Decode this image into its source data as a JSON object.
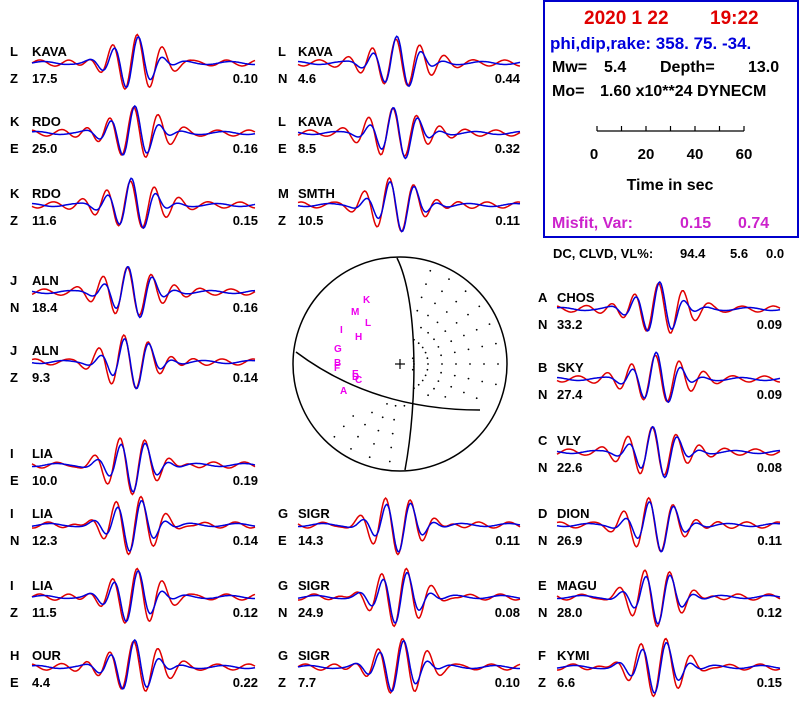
{
  "header": {
    "date": "2020  1 22",
    "time": "19:22",
    "mechanism": "phi,dip,rake: 358. 75.  -34.",
    "mw_label": "Mw=",
    "mw": "5.4",
    "depth_label": "Depth=",
    "depth": "13.0",
    "mo_label": "Mo=",
    "mo": "1.60 x10**24 DYNECM",
    "misfit_label": "Misfit, Var:",
    "misfit": "0.15",
    "var": "0.74",
    "dc_label": "DC, CLVD, VL%:",
    "dc": "94.4",
    "clvd": "5.6",
    "vl": "0.0"
  },
  "time_scale": {
    "ticks": [
      "0",
      "20",
      "40",
      "60"
    ],
    "label": "Time  in sec"
  },
  "colors": {
    "observed": "#e00000",
    "synthetic": "#0000dd",
    "frame": "#0000cc",
    "date": "#e00000",
    "mechanism": "#0000dd",
    "misfit": "#cc22cc",
    "station_marks": "#ee00ee"
  },
  "traces": [
    {
      "letter": "L",
      "station": "KAVA",
      "comp": "Z",
      "dist": "17.5",
      "amp": "0.10"
    },
    {
      "letter": "K",
      "station": "RDO",
      "comp": "E",
      "dist": "25.0",
      "amp": "0.16"
    },
    {
      "letter": "K",
      "station": "RDO",
      "comp": "Z",
      "dist": "11.6",
      "amp": "0.15"
    },
    {
      "letter": "J",
      "station": "ALN",
      "comp": "N",
      "dist": "18.4",
      "amp": "0.16"
    },
    {
      "letter": "J",
      "station": "ALN",
      "comp": "Z",
      "dist": "9.3",
      "amp": "0.14"
    },
    {
      "letter": "I",
      "station": "LIA",
      "comp": "E",
      "dist": "10.0",
      "amp": "0.19"
    },
    {
      "letter": "I",
      "station": "LIA",
      "comp": "N",
      "dist": "12.3",
      "amp": "0.14"
    },
    {
      "letter": "I",
      "station": "LIA",
      "comp": "Z",
      "dist": "11.5",
      "amp": "0.12"
    },
    {
      "letter": "H",
      "station": "OUR",
      "comp": "E",
      "dist": "4.4",
      "amp": "0.22"
    },
    {
      "letter": "L",
      "station": "KAVA",
      "comp": "N",
      "dist": "4.6",
      "amp": "0.44"
    },
    {
      "letter": "L",
      "station": "KAVA",
      "comp": "E",
      "dist": "8.5",
      "amp": "0.32"
    },
    {
      "letter": "M",
      "station": "SMTH",
      "comp": "Z",
      "dist": "10.5",
      "amp": "0.11"
    },
    {
      "letter": "G",
      "station": "SIGR",
      "comp": "E",
      "dist": "14.3",
      "amp": "0.11"
    },
    {
      "letter": "G",
      "station": "SIGR",
      "comp": "N",
      "dist": "24.9",
      "amp": "0.08"
    },
    {
      "letter": "G",
      "station": "SIGR",
      "comp": "Z",
      "dist": "7.7",
      "amp": "0.10"
    },
    {
      "letter": "A",
      "station": "CHOS",
      "comp": "N",
      "dist": "33.2",
      "amp": "0.09"
    },
    {
      "letter": "B",
      "station": "SKY",
      "comp": "N",
      "dist": "27.4",
      "amp": "0.09"
    },
    {
      "letter": "C",
      "station": "VLY",
      "comp": "N",
      "dist": "22.6",
      "amp": "0.08"
    },
    {
      "letter": "D",
      "station": "DION",
      "comp": "N",
      "dist": "26.9",
      "amp": "0.11"
    },
    {
      "letter": "E",
      "station": "MAGU",
      "comp": "N",
      "dist": "28.0",
      "amp": "0.12"
    },
    {
      "letter": "F",
      "station": "KYMI",
      "comp": "Z",
      "dist": "6.6",
      "amp": "0.15"
    }
  ],
  "beachball_stations": [
    "K",
    "M",
    "L",
    "I",
    "H",
    "G",
    "B",
    "F",
    "E",
    "D",
    "C",
    "A"
  ]
}
